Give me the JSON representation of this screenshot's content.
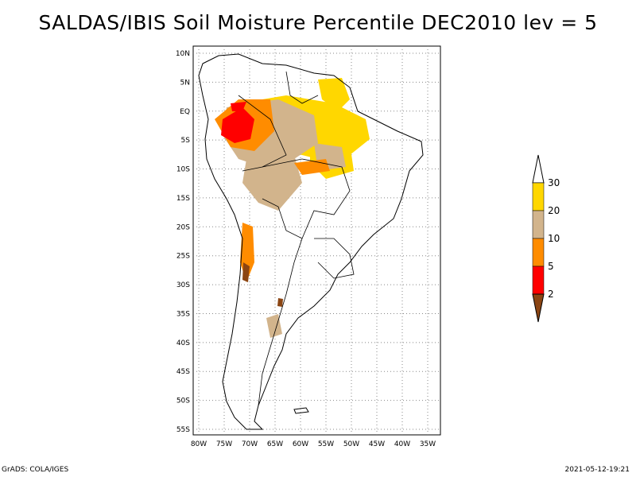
{
  "title": "SALDAS/IBIS Soil Moisture Percentile DEC2010 lev = 5",
  "map": {
    "lat_ticks": [
      "10N",
      "5N",
      "EQ",
      "5S",
      "10S",
      "15S",
      "20S",
      "25S",
      "30S",
      "35S",
      "40S",
      "45S",
      "50S",
      "55S"
    ],
    "lon_ticks": [
      "80W",
      "75W",
      "70W",
      "65W",
      "60W",
      "55W",
      "50W",
      "45W",
      "40W",
      "35W"
    ],
    "grid": true
  },
  "colorbar": {
    "levels": [
      "2",
      "5",
      "10",
      "20",
      "30"
    ],
    "colors": [
      "#8b4513",
      "#ff0000",
      "#ff8c00",
      "#d2b48c",
      "#ffd700",
      "#ffffff"
    ]
  },
  "footer": {
    "left": "GrADS: COLA/IGES",
    "right": "2021-05-12-19:21"
  }
}
